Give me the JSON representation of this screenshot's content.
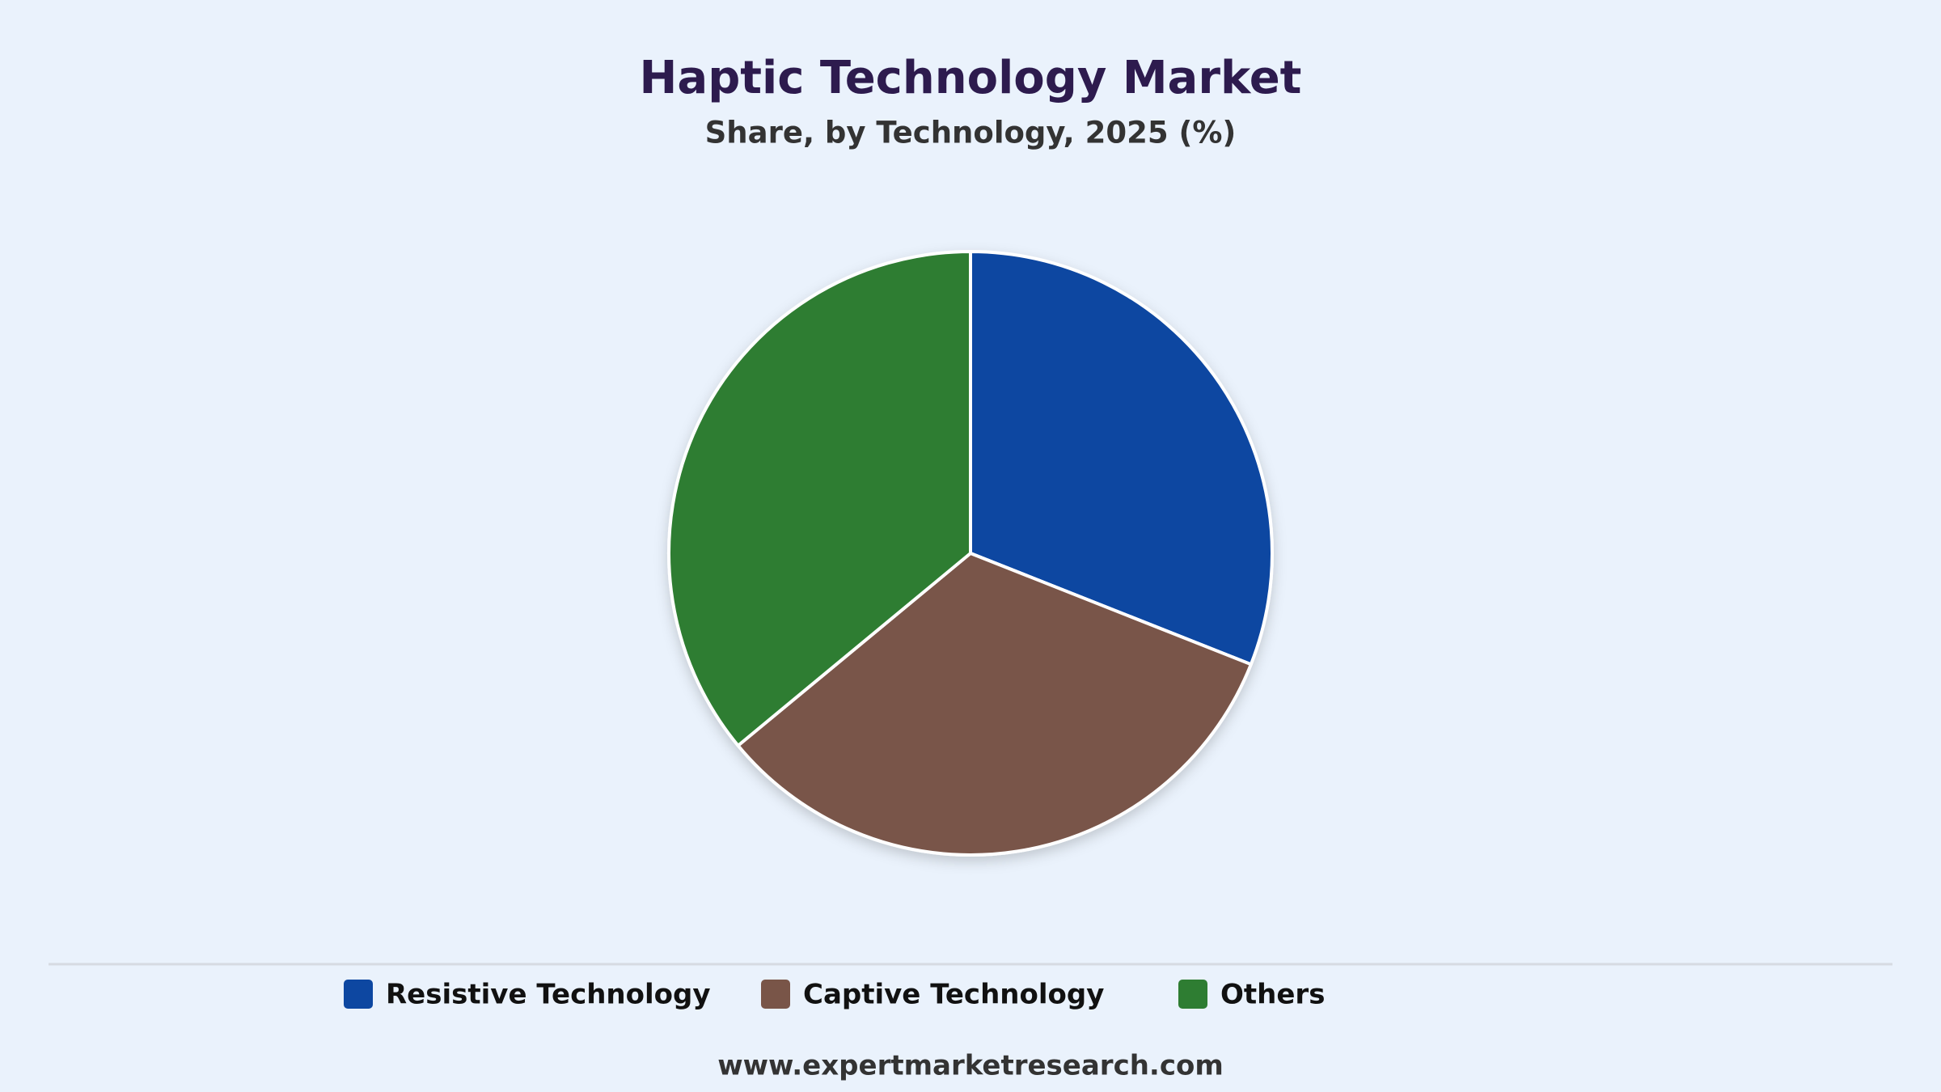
{
  "chart_data": {
    "type": "pie",
    "title": "Haptic Technology Market",
    "subtitle": "Share, by Technology, 2025 (%)",
    "categories": [
      "Resistive Technology",
      "Captive Technology",
      "Others"
    ],
    "values": [
      31,
      33,
      36
    ],
    "colors": [
      "#0d47a1",
      "#795548",
      "#2e7d32"
    ],
    "legend": "bottom",
    "source": "www.expertmarketresearch.com"
  }
}
